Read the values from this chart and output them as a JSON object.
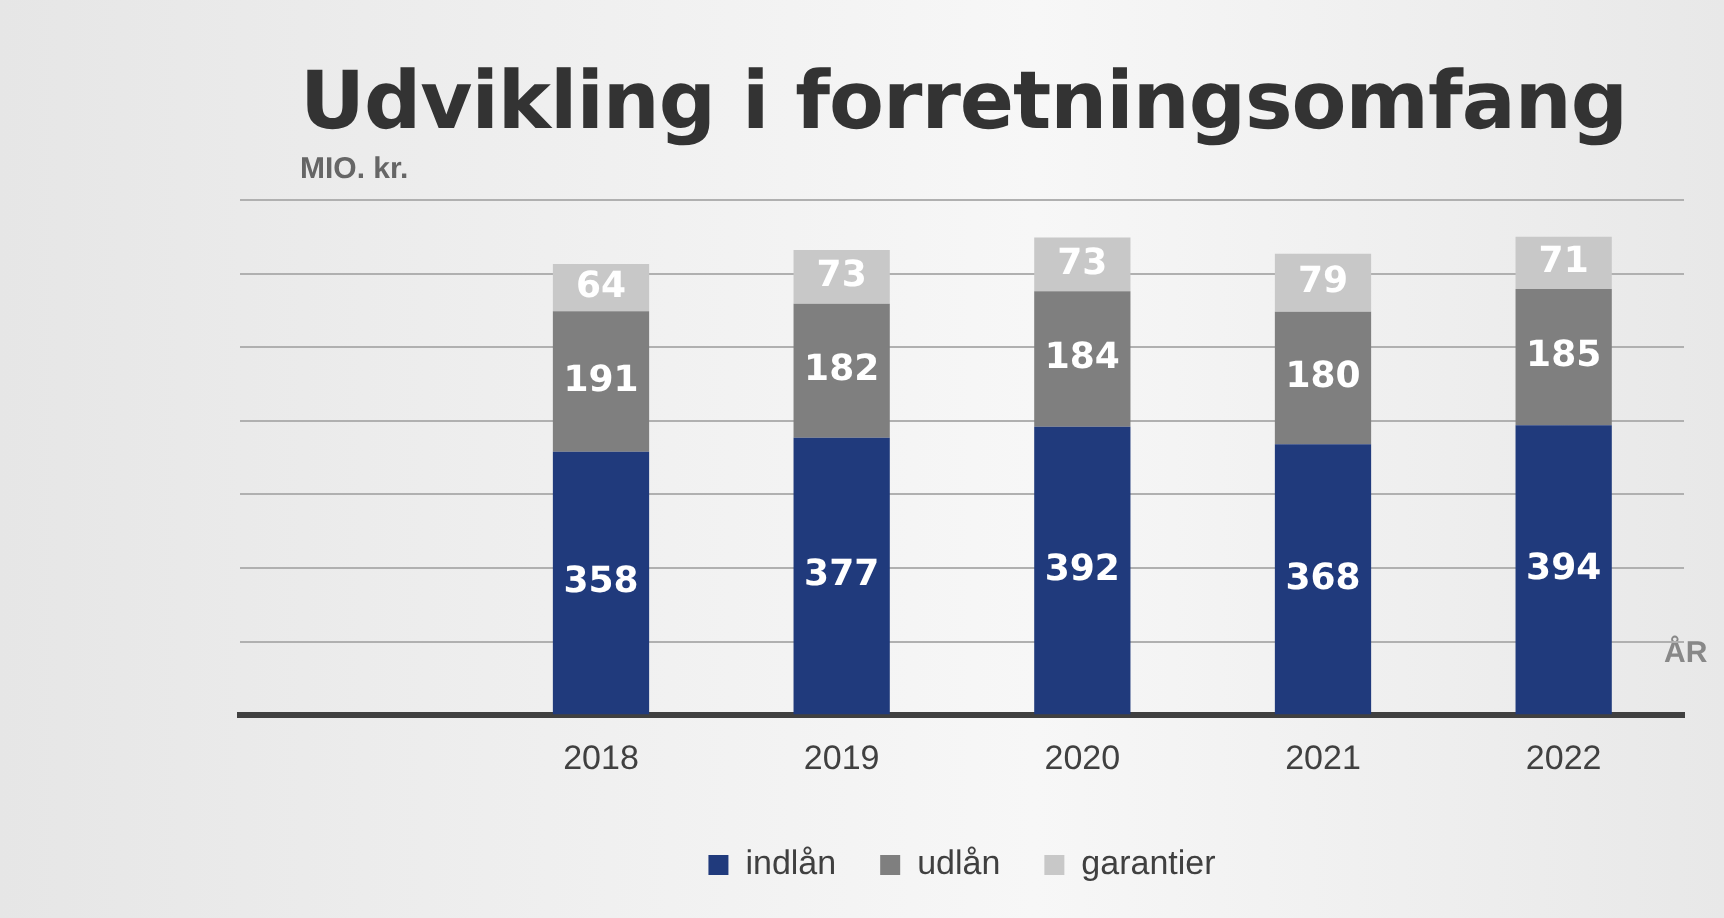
{
  "chart_data": {
    "type": "bar",
    "stacked": true,
    "title": "Udvikling i forretningsomfang",
    "ylabel": "MIO. kr.",
    "xlabel": "ÅR",
    "categories": [
      null,
      "2018",
      "2019",
      "2020",
      "2021",
      "2022"
    ],
    "series": [
      {
        "name": "indlån",
        "color": "#203a7c",
        "values": [
          null,
          358,
          377,
          392,
          368,
          394
        ]
      },
      {
        "name": "udlån",
        "color": "#7f7f7f",
        "values": [
          null,
          191,
          182,
          184,
          180,
          185
        ]
      },
      {
        "name": "garantier",
        "color": "#c8c8c8",
        "values": [
          null,
          64,
          73,
          73,
          79,
          71
        ]
      }
    ],
    "ylim": [
      0,
      700
    ],
    "yticks": [
      {
        "value": 0,
        "label": null
      },
      {
        "value": 100,
        "label": null
      },
      {
        "value": 200,
        "label": null
      },
      {
        "value": 300,
        "label": null
      },
      {
        "value": 400,
        "label": null
      },
      {
        "value": 500,
        "label": null
      },
      {
        "value": 600,
        "label": null
      },
      {
        "value": 700,
        "label": null
      }
    ],
    "grid": "y",
    "legend": "bottom",
    "tick_labels": "x",
    "data_labels": true
  }
}
